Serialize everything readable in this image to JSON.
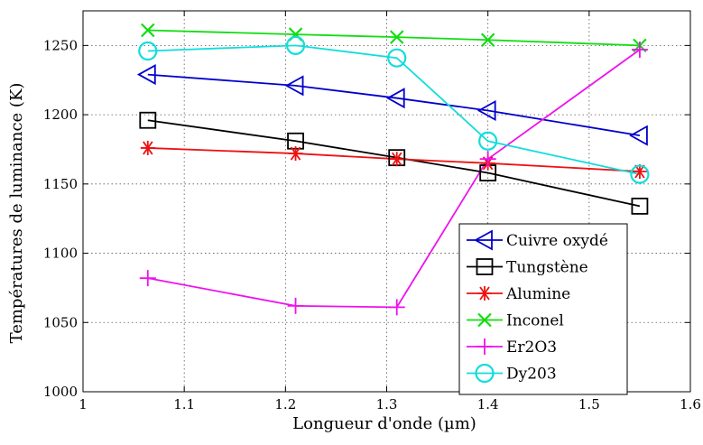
{
  "chart_data": {
    "type": "line",
    "title": "",
    "xlabel": "Longueur d'onde (µm)",
    "ylabel": "Températures de luminance (K)",
    "xlim": [
      1,
      1.6
    ],
    "ylim": [
      1000,
      1275
    ],
    "xticks": [
      1,
      1.1,
      1.2,
      1.3,
      1.4,
      1.5,
      1.6
    ],
    "xtick_labels": [
      "1",
      "1.1",
      "1.2",
      "1.3",
      "1.4",
      "1.5",
      "1.6"
    ],
    "yticks": [
      1000,
      1050,
      1100,
      1150,
      1200,
      1250
    ],
    "ytick_labels": [
      "1000",
      "1050",
      "1100",
      "1150",
      "1200",
      "1250"
    ],
    "grid": true,
    "legend_position": "bottom-right",
    "series": [
      {
        "name": "Cuivre oxydé",
        "color": "#0000cc",
        "marker": "triangle-left",
        "x": [
          1.064,
          1.21,
          1.31,
          1.4,
          1.55
        ],
        "y": [
          1229,
          1221,
          1212,
          1203,
          1185
        ]
      },
      {
        "name": "Tungstène",
        "color": "#000000",
        "marker": "square",
        "x": [
          1.064,
          1.21,
          1.31,
          1.4,
          1.55
        ],
        "y": [
          1196,
          1181,
          1169,
          1158,
          1134
        ]
      },
      {
        "name": "Alumine",
        "color": "#ee1111",
        "marker": "asterisk",
        "x": [
          1.064,
          1.21,
          1.31,
          1.4,
          1.55
        ],
        "y": [
          1176,
          1172,
          1168,
          1165,
          1159
        ]
      },
      {
        "name": "Inconel",
        "color": "#11dd11",
        "marker": "x",
        "x": [
          1.064,
          1.21,
          1.31,
          1.4,
          1.55
        ],
        "y": [
          1261,
          1258,
          1256,
          1254,
          1250
        ]
      },
      {
        "name": "Er2O3",
        "color": "#ee11ee",
        "marker": "plus",
        "x": [
          1.064,
          1.21,
          1.31,
          1.4,
          1.55
        ],
        "y": [
          1082,
          1062,
          1061,
          1168,
          1247
        ]
      },
      {
        "name": "Dy203",
        "color": "#11dddd",
        "marker": "circle",
        "x": [
          1.064,
          1.21,
          1.31,
          1.4,
          1.55
        ],
        "y": [
          1246,
          1250,
          1241,
          1181,
          1157
        ]
      }
    ]
  }
}
